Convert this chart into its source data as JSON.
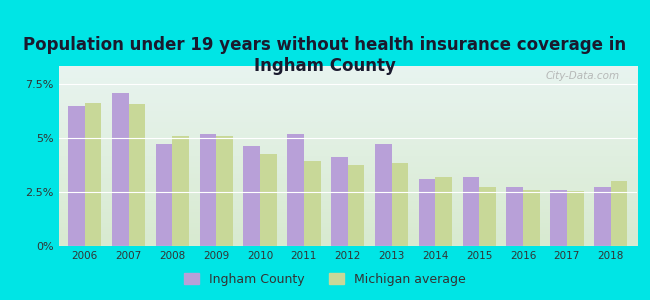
{
  "title": "Population under 19 years without health insurance coverage in\nIngham County",
  "years": [
    2006,
    2007,
    2008,
    2009,
    2010,
    2011,
    2012,
    2013,
    2014,
    2015,
    2016,
    2017,
    2018
  ],
  "ingham": [
    6.5,
    7.1,
    4.7,
    5.2,
    4.65,
    5.2,
    4.1,
    4.7,
    3.1,
    3.2,
    2.75,
    2.6,
    2.75
  ],
  "michigan": [
    6.6,
    6.55,
    5.1,
    5.1,
    4.25,
    3.95,
    3.75,
    3.85,
    3.2,
    2.75,
    2.6,
    2.55,
    3.0
  ],
  "ingham_color": "#b8a0d8",
  "michigan_color": "#c8d898",
  "bg_color": "#00e5e5",
  "plot_bg_top": "#e8f4f0",
  "plot_bg_bottom": "#d8ead0",
  "ylim": [
    0,
    8.33
  ],
  "yticks": [
    0,
    2.5,
    5.0,
    7.5
  ],
  "ytick_labels": [
    "0%",
    "2.5%",
    "5%",
    "7.5%"
  ],
  "legend_ingham": "Ingham County",
  "legend_michigan": "Michigan average",
  "bar_width": 0.38,
  "title_fontsize": 12,
  "title_color": "#1a1a2e",
  "watermark": "City-Data.com"
}
